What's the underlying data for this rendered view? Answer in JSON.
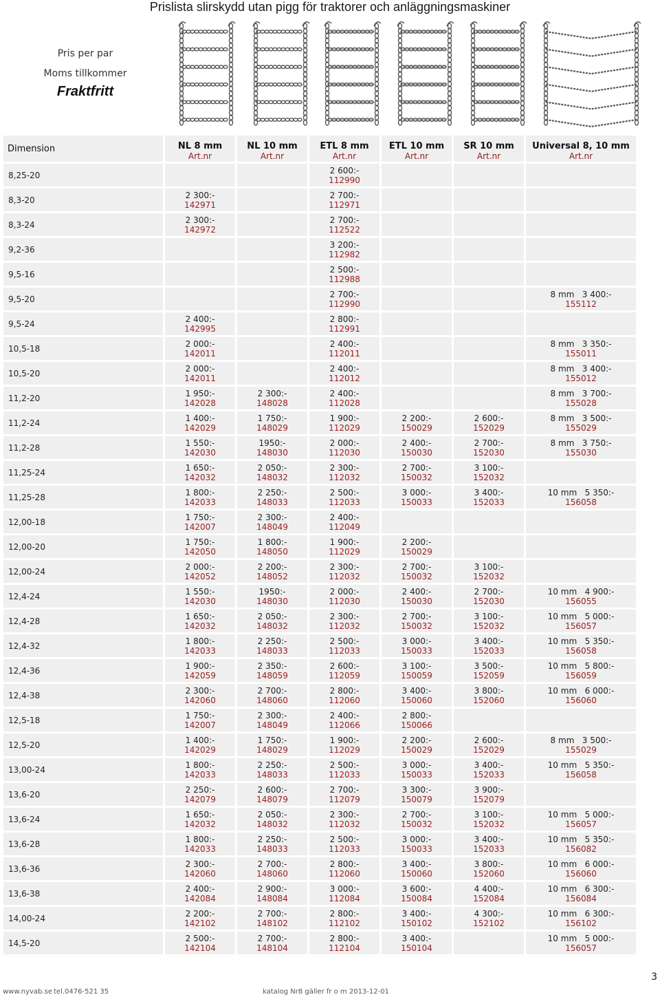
{
  "title": "Prislista slirskydd utan pigg för traktorer och anläggningsmaskiner",
  "info": {
    "line1": "Pris per par",
    "line2": "Moms tillkommer",
    "line3": "Fraktfritt"
  },
  "header": {
    "dimension": "Dimension",
    "columns": [
      {
        "name": "NL 8 mm",
        "sub": "Art.nr"
      },
      {
        "name": "NL 10 mm",
        "sub": "Art.nr"
      },
      {
        "name": "ETL 8 mm",
        "sub": "Art.nr"
      },
      {
        "name": "ETL 10 mm",
        "sub": "Art.nr"
      },
      {
        "name": "SR 10 mm",
        "sub": "Art.nr"
      },
      {
        "name": "Universal 8, 10 mm",
        "sub": "Art.nr"
      }
    ]
  },
  "rows": [
    {
      "dim": "8,25-20",
      "c": [
        null,
        null,
        {
          "p": "2 600:-",
          "a": "112990"
        },
        null,
        null,
        null
      ]
    },
    {
      "dim": "8,3-20",
      "c": [
        {
          "p": "2 300:-",
          "a": "142971"
        },
        null,
        {
          "p": "2 700:-",
          "a": "112971"
        },
        null,
        null,
        null
      ]
    },
    {
      "dim": "8,3-24",
      "c": [
        {
          "p": "2 300:-",
          "a": "142972"
        },
        null,
        {
          "p": "2 700:-",
          "a": "112522"
        },
        null,
        null,
        null
      ]
    },
    {
      "dim": "9,2-36",
      "c": [
        null,
        null,
        {
          "p": "3 200:-",
          "a": "112982"
        },
        null,
        null,
        null
      ]
    },
    {
      "dim": "9,5-16",
      "c": [
        null,
        null,
        {
          "p": "2 500:-",
          "a": "112988"
        },
        null,
        null,
        null
      ]
    },
    {
      "dim": "9,5-20",
      "c": [
        null,
        null,
        {
          "p": "2 700:-",
          "a": "112990"
        },
        null,
        null,
        {
          "p": "8 mm   3 400:-",
          "a": "155112"
        }
      ]
    },
    {
      "dim": "9,5-24",
      "c": [
        {
          "p": "2 400:-",
          "a": "142995"
        },
        null,
        {
          "p": "2 800:-",
          "a": "112991"
        },
        null,
        null,
        null
      ]
    },
    {
      "dim": "10,5-18",
      "c": [
        {
          "p": "2 000:-",
          "a": "142011"
        },
        null,
        {
          "p": "2 400:-",
          "a": "112011"
        },
        null,
        null,
        {
          "p": "8 mm   3 350:-",
          "a": "155011"
        }
      ]
    },
    {
      "dim": "10,5-20",
      "c": [
        {
          "p": "2 000:-",
          "a": "142011"
        },
        null,
        {
          "p": "2 400:-",
          "a": "112012"
        },
        null,
        null,
        {
          "p": "8 mm   3 400:-",
          "a": "155012"
        }
      ]
    },
    {
      "dim": "11,2-20",
      "c": [
        {
          "p": "1 950:-",
          "a": "142028"
        },
        {
          "p": "2 300:-",
          "a": "148028"
        },
        {
          "p": "2 400:-",
          "a": "112028"
        },
        null,
        null,
        {
          "p": "8 mm   3 700:-",
          "a": "155028"
        }
      ]
    },
    {
      "dim": "11,2-24",
      "c": [
        {
          "p": "1 400:-",
          "a": "142029"
        },
        {
          "p": "1 750:-",
          "a": "148029"
        },
        {
          "p": "1 900:-",
          "a": "112029"
        },
        {
          "p": "2 200:-",
          "a": "150029"
        },
        {
          "p": "2 600:-",
          "a": "152029"
        },
        {
          "p": "8 mm   3 500:-",
          "a": "155029"
        }
      ]
    },
    {
      "dim": "11,2-28",
      "c": [
        {
          "p": "1 550:-",
          "a": "142030"
        },
        {
          "p": "1950:-",
          "a": "148030"
        },
        {
          "p": "2 000:-",
          "a": "112030"
        },
        {
          "p": "2 400:-",
          "a": "150030"
        },
        {
          "p": "2 700:-",
          "a": "152030"
        },
        {
          "p": "8 mm   3 750:-",
          "a": "155030"
        }
      ]
    },
    {
      "dim": "11,25-24",
      "c": [
        {
          "p": "1 650:-",
          "a": "142032"
        },
        {
          "p": "2 050:-",
          "a": "148032"
        },
        {
          "p": "2 300:-",
          "a": "112032"
        },
        {
          "p": "2 700:-",
          "a": "150032"
        },
        {
          "p": "3 100:-",
          "a": "152032"
        },
        null
      ]
    },
    {
      "dim": "11,25-28",
      "c": [
        {
          "p": "1 800:-",
          "a": "142033"
        },
        {
          "p": "2 250:-",
          "a": "148033"
        },
        {
          "p": "2 500:-",
          "a": "112033"
        },
        {
          "p": "3 000:-",
          "a": "150033"
        },
        {
          "p": "3 400:-",
          "a": "152033"
        },
        {
          "p": "10 mm   5 350:-",
          "a": "156058"
        }
      ]
    },
    {
      "dim": "12,00-18",
      "c": [
        {
          "p": "1 750:-",
          "a": "142007"
        },
        {
          "p": "2 300:-",
          "a": "148049"
        },
        {
          "p": "2 400:-",
          "a": "112049"
        },
        null,
        null,
        null
      ]
    },
    {
      "dim": "12,00-20",
      "c": [
        {
          "p": "1 750:-",
          "a": "142050"
        },
        {
          "p": "1 800:-",
          "a": "148050"
        },
        {
          "p": "1 900:-",
          "a": "112029"
        },
        {
          "p": "2 200:-",
          "a": "150029"
        },
        null,
        null
      ]
    },
    {
      "dim": "12,00-24",
      "c": [
        {
          "p": "2 000:-",
          "a": "142052"
        },
        {
          "p": "2 200:-",
          "a": "148052"
        },
        {
          "p": "2 300:-",
          "a": "112032"
        },
        {
          "p": "2 700:-",
          "a": "150032"
        },
        {
          "p": "3 100:-",
          "a": "152032"
        },
        null
      ]
    },
    {
      "dim": "12,4-24",
      "c": [
        {
          "p": "1 550:-",
          "a": "142030"
        },
        {
          "p": "1950:-",
          "a": "148030"
        },
        {
          "p": "2 000:-",
          "a": "112030"
        },
        {
          "p": "2 400:-",
          "a": "150030"
        },
        {
          "p": "2 700:-",
          "a": "152030"
        },
        {
          "p": "10 mm   4 900:-",
          "a": "156055"
        }
      ]
    },
    {
      "dim": "12,4-28",
      "c": [
        {
          "p": "1 650:-",
          "a": "142032"
        },
        {
          "p": "2 050:-",
          "a": "148032"
        },
        {
          "p": "2 300:-",
          "a": "112032"
        },
        {
          "p": "2 700:-",
          "a": "150032"
        },
        {
          "p": "3 100:-",
          "a": "152032"
        },
        {
          "p": "10 mm   5 000:-",
          "a": "156057"
        }
      ]
    },
    {
      "dim": "12,4-32",
      "c": [
        {
          "p": "1 800:-",
          "a": "142033"
        },
        {
          "p": "2 250:-",
          "a": "148033"
        },
        {
          "p": "2 500:-",
          "a": "112033"
        },
        {
          "p": "3 000:-",
          "a": "150033"
        },
        {
          "p": "3 400:-",
          "a": "152033"
        },
        {
          "p": "10 mm   5 350:-",
          "a": "156058"
        }
      ]
    },
    {
      "dim": "12,4-36",
      "c": [
        {
          "p": "1 900:-",
          "a": "142059"
        },
        {
          "p": "2 350:-",
          "a": "148059"
        },
        {
          "p": "2 600:-",
          "a": "112059"
        },
        {
          "p": "3 100:-",
          "a": "150059"
        },
        {
          "p": "3 500:-",
          "a": "152059"
        },
        {
          "p": "10 mm   5 800:-",
          "a": "156059"
        }
      ]
    },
    {
      "dim": "12,4-38",
      "c": [
        {
          "p": "2 300:-",
          "a": "142060"
        },
        {
          "p": "2 700:-",
          "a": "148060"
        },
        {
          "p": "2 800:-",
          "a": "112060"
        },
        {
          "p": "3 400:-",
          "a": "150060"
        },
        {
          "p": "3 800:-",
          "a": "152060"
        },
        {
          "p": "10 mm   6 000:-",
          "a": "156060"
        }
      ]
    },
    {
      "dim": "12,5-18",
      "c": [
        {
          "p": "1 750:-",
          "a": "142007"
        },
        {
          "p": "2 300:-",
          "a": "148049"
        },
        {
          "p": "2 400:-",
          "a": "112066"
        },
        {
          "p": "2 800:-",
          "a": "150066"
        },
        null,
        null
      ]
    },
    {
      "dim": "12,5-20",
      "c": [
        {
          "p": "1 400:-",
          "a": "142029"
        },
        {
          "p": "1 750:-",
          "a": "148029"
        },
        {
          "p": "1 900:-",
          "a": "112029"
        },
        {
          "p": "2 200:-",
          "a": "150029"
        },
        {
          "p": "2 600:-",
          "a": "152029"
        },
        {
          "p": "8 mm   3 500:-",
          "a": "155029"
        }
      ]
    },
    {
      "dim": "13,00-24",
      "c": [
        {
          "p": "1 800:-",
          "a": "142033"
        },
        {
          "p": "2 250:-",
          "a": "148033"
        },
        {
          "p": "2 500:-",
          "a": "112033"
        },
        {
          "p": "3 000:-",
          "a": "150033"
        },
        {
          "p": "3 400:-",
          "a": "152033"
        },
        {
          "p": "10 mm   5 350:-",
          "a": "156058"
        }
      ]
    },
    {
      "dim": "13,6-20",
      "c": [
        {
          "p": "2 250:-",
          "a": "142079"
        },
        {
          "p": "2 600:-",
          "a": "148079"
        },
        {
          "p": "2 700:-",
          "a": "112079"
        },
        {
          "p": "3 300:-",
          "a": "150079"
        },
        {
          "p": "3 900:-",
          "a": "152079"
        },
        null
      ]
    },
    {
      "dim": "13,6-24",
      "c": [
        {
          "p": "1 650:-",
          "a": "142032"
        },
        {
          "p": "2 050:-",
          "a": "148032"
        },
        {
          "p": "2 300:-",
          "a": "112032"
        },
        {
          "p": "2 700:-",
          "a": "150032"
        },
        {
          "p": "3 100:-",
          "a": "152032"
        },
        {
          "p": "10 mm   5 000:-",
          "a": "156057"
        }
      ]
    },
    {
      "dim": "13,6-28",
      "c": [
        {
          "p": "1 800:-",
          "a": "142033"
        },
        {
          "p": "2 250:-",
          "a": "148033"
        },
        {
          "p": "2 500:-",
          "a": "112033"
        },
        {
          "p": "3 000:-",
          "a": "150033"
        },
        {
          "p": "3 400:-",
          "a": "152033"
        },
        {
          "p": "10 mm   5 350:-",
          "a": "156082"
        }
      ]
    },
    {
      "dim": "13,6-36",
      "c": [
        {
          "p": "2 300:-",
          "a": "142060"
        },
        {
          "p": "2 700:-",
          "a": "148060"
        },
        {
          "p": "2 800:-",
          "a": "112060"
        },
        {
          "p": "3 400:-",
          "a": "150060"
        },
        {
          "p": "3 800:-",
          "a": "152060"
        },
        {
          "p": "10 mm   6 000:-",
          "a": "156060"
        }
      ]
    },
    {
      "dim": "13,6-38",
      "c": [
        {
          "p": "2 400:-",
          "a": "142084"
        },
        {
          "p": "2 900:-",
          "a": "148084"
        },
        {
          "p": "3 000:-",
          "a": "112084"
        },
        {
          "p": "3 600:-",
          "a": "150084"
        },
        {
          "p": "4 400:-",
          "a": "152084"
        },
        {
          "p": "10 mm   6 300:-",
          "a": "156084"
        }
      ]
    },
    {
      "dim": "14,00-24",
      "c": [
        {
          "p": "2 200:-",
          "a": "142102"
        },
        {
          "p": "2 700:-",
          "a": "148102"
        },
        {
          "p": "2 800:-",
          "a": "112102"
        },
        {
          "p": "3 400:-",
          "a": "150102"
        },
        {
          "p": "4 300:-",
          "a": "152102"
        },
        {
          "p": "10 mm   6 300:-",
          "a": "156102"
        }
      ]
    },
    {
      "dim": "14,5-20",
      "c": [
        {
          "p": "2 500:-",
          "a": "142104"
        },
        {
          "p": "2 700:-",
          "a": "148104"
        },
        {
          "p": "2 800:-",
          "a": "112104"
        },
        {
          "p": "3 400:-",
          "a": "150104"
        },
        null,
        {
          "p": "10 mm   5 000:-",
          "a": "156057"
        }
      ]
    }
  ],
  "footer": {
    "site": "www.nyvab.se",
    "phone": "tel.0476-521 35",
    "catalog": "katalog Nr8 gäller fr o m 2013-12-01",
    "page": "3"
  }
}
